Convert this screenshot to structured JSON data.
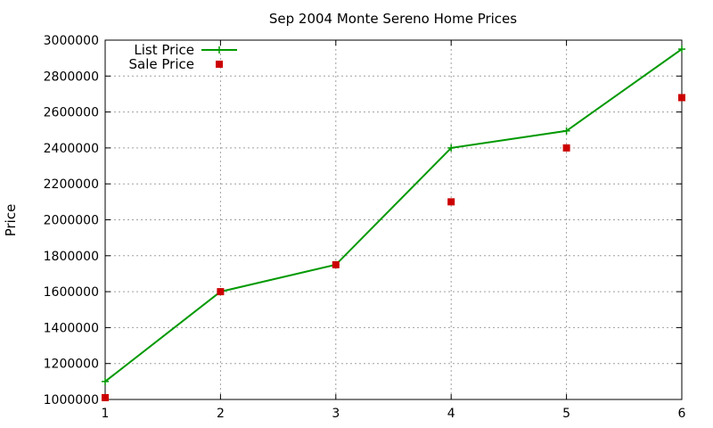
{
  "chart_data": {
    "type": "line",
    "title": "Sep 2004 Monte Sereno Home Prices",
    "xlabel": "",
    "ylabel": "Price",
    "xlim": [
      1,
      6
    ],
    "ylim": [
      1000000,
      3000000
    ],
    "x_ticks": [
      "1",
      "2",
      "3",
      "4",
      "5",
      "6"
    ],
    "y_ticks": [
      "1000000",
      "1200000",
      "1400000",
      "1600000",
      "1800000",
      "2000000",
      "2200000",
      "2400000",
      "2600000",
      "2800000",
      "3000000"
    ],
    "grid": true,
    "legend_position": "top-left",
    "series": [
      {
        "name": "List Price",
        "style": "line+points",
        "color": "#009900",
        "x": [
          1,
          2,
          3,
          4,
          5,
          6
        ],
        "y": [
          1100000,
          1600000,
          1750000,
          2400000,
          2495000,
          2950000
        ]
      },
      {
        "name": "Sale Price",
        "style": "points",
        "color": "#cc0000",
        "x": [
          1,
          2,
          3,
          4,
          5,
          6
        ],
        "y": [
          1010000,
          1600000,
          1750000,
          2100000,
          2400000,
          2680000
        ]
      }
    ]
  }
}
